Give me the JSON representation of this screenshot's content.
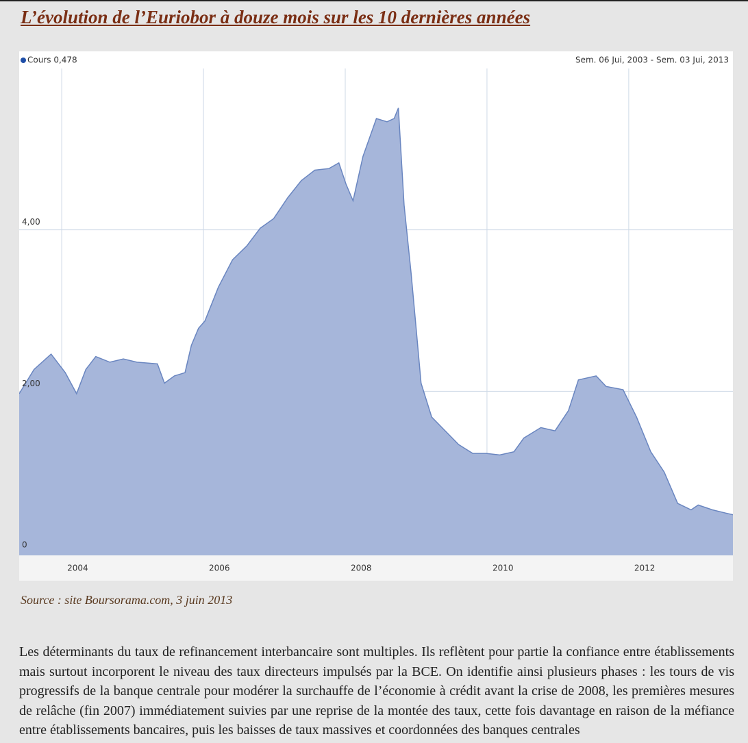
{
  "title": "L’évolution de l’Euriobor à douze mois sur les 10 dernières années",
  "chart_data": {
    "type": "area",
    "period": "Sem. 06 Jui, 2003 - Sem. 03 Jui, 2013",
    "x": [
      2003.4,
      2003.61,
      2003.85,
      2004.05,
      2004.21,
      2004.34,
      2004.48,
      2004.68,
      2004.87,
      2005.06,
      2005.35,
      2005.45,
      2005.59,
      2005.74,
      2005.83,
      2005.93,
      2006.02,
      2006.21,
      2006.41,
      2006.61,
      2006.8,
      2006.99,
      2007.19,
      2007.38,
      2007.57,
      2007.77,
      2007.91,
      2008.01,
      2008.11,
      2008.25,
      2008.44,
      2008.59,
      2008.69,
      2008.75,
      2008.83,
      2008.93,
      2009.0,
      2009.07,
      2009.22,
      2009.41,
      2009.6,
      2009.8,
      2009.99,
      2010.18,
      2010.38,
      2010.52,
      2010.76,
      2010.96,
      2011.15,
      2011.29,
      2011.54,
      2011.68,
      2011.92,
      2012.11,
      2012.31,
      2012.5,
      2012.69,
      2012.88,
      2012.98,
      2013.18,
      2013.37,
      2013.47
    ],
    "series": [
      {
        "name": "Cours 0,478",
        "color": "#6a86c0",
        "fill": "#a6b6da",
        "values": [
          1.97,
          2.27,
          2.46,
          2.23,
          1.97,
          2.27,
          2.43,
          2.36,
          2.4,
          2.36,
          2.34,
          2.1,
          2.19,
          2.23,
          2.57,
          2.78,
          2.87,
          3.29,
          3.63,
          3.8,
          4.02,
          4.14,
          4.4,
          4.61,
          4.74,
          4.76,
          4.83,
          4.57,
          4.36,
          4.91,
          5.38,
          5.34,
          5.38,
          5.51,
          4.31,
          3.46,
          2.78,
          2.1,
          1.68,
          1.51,
          1.34,
          1.23,
          1.23,
          1.21,
          1.25,
          1.42,
          1.55,
          1.51,
          1.76,
          2.14,
          2.19,
          2.06,
          2.02,
          1.68,
          1.25,
          1.0,
          0.61,
          0.53,
          0.59,
          0.53,
          0.49,
          0.47
        ]
      }
    ],
    "xlim": [
      2003.4,
      2013.47
    ],
    "xticks": [
      2004,
      2006,
      2008,
      2010,
      2012
    ],
    "ylim": [
      0,
      6.0
    ],
    "yticks": [
      0,
      {
        "value": 2,
        "label": "2,00"
      },
      {
        "value": 4,
        "label": "4,00"
      }
    ],
    "grid": true
  },
  "source": "Source : site Boursorama.com, 3 juin 2013",
  "paragraph": "Les déterminants du taux de refinancement interbancaire sont multiples. Ils reflètent pour partie la confiance entre établissements mais surtout incorporent le niveau des taux directeurs impulsés par la BCE. On identifie ainsi plusieurs phases : les tours de vis progressifs de la banque centrale pour modérer la surchauffe de l’économie à crédit avant la crise de 2008, les premières mesures de relâche (fin 2007) immédiatement suivies par une reprise de la montée des taux, cette fois davantage en raison de la méfiance entre établissements bancaires, puis les baisses de taux massives et coordonnées des banques centrales"
}
